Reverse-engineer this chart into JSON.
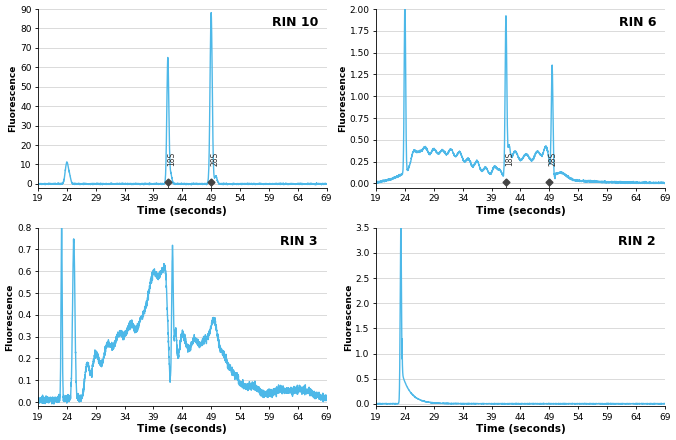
{
  "line_color": "#4db8e8",
  "line_width": 1.0,
  "bg_color": "#ffffff",
  "grid_color": "#cccccc",
  "text_color": "#000000",
  "xlim": [
    19,
    69
  ],
  "xticks": [
    19,
    24,
    29,
    34,
    39,
    44,
    49,
    54,
    59,
    64,
    69
  ],
  "xlabel": "Time (seconds)",
  "ylabel": "Fluorescence",
  "plots": [
    {
      "title": "RIN 10",
      "ylim": [
        -2,
        90
      ],
      "yticks": [
        0,
        10,
        20,
        30,
        40,
        50,
        60,
        70,
        80,
        90
      ],
      "marker_18S": 41.5,
      "marker_28S": 49.0,
      "show_markers": true
    },
    {
      "title": "RIN 6",
      "ylim": [
        -0.05,
        2.0
      ],
      "yticks": [
        0.0,
        0.25,
        0.5,
        0.75,
        1.0,
        1.25,
        1.5,
        1.75,
        2.0
      ],
      "marker_18S": 41.5,
      "marker_28S": 49.0,
      "show_markers": true
    },
    {
      "title": "RIN 3",
      "ylim": [
        -0.02,
        0.8
      ],
      "yticks": [
        0.0,
        0.1,
        0.2,
        0.3,
        0.4,
        0.5,
        0.6,
        0.7,
        0.8
      ],
      "show_markers": false
    },
    {
      "title": "RIN 2",
      "ylim": [
        -0.05,
        3.5
      ],
      "yticks": [
        0.0,
        0.5,
        1.0,
        1.5,
        2.0,
        2.5,
        3.0,
        3.5
      ],
      "show_markers": false
    }
  ]
}
